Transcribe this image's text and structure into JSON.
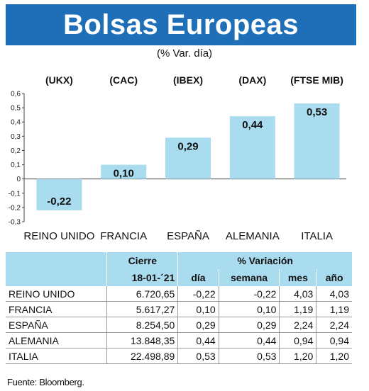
{
  "title": "Bolsas Europeas",
  "subtitle": "(% Var. día)",
  "chart_data": {
    "type": "bar",
    "categories": [
      "REINO UNIDO",
      "FRANCIA",
      "ESPAÑA",
      "ALEMANIA",
      "ITALIA"
    ],
    "indices": [
      "(UKX)",
      "(CAC)",
      "(IBEX)",
      "(DAX)",
      "(FTSE MIB)"
    ],
    "values": [
      -0.22,
      0.1,
      0.29,
      0.44,
      0.53
    ],
    "value_labels": [
      "-0,22",
      "0,10",
      "0,29",
      "0,44",
      "0,53"
    ],
    "ylim": [
      -0.3,
      0.6
    ],
    "yticks": [
      "0,6",
      "0,5",
      "0,4",
      "0,3",
      "0,2",
      "0,1",
      "0",
      "-0,1",
      "-0,2",
      "-0,3"
    ],
    "bar_color": "#a9dcef",
    "grid": false
  },
  "table": {
    "header_cierre": "Cierre",
    "header_variacion": "% Variación",
    "header_date": "18-01-´21",
    "subheaders": [
      "día",
      "semana",
      "mes",
      "año"
    ],
    "rows": [
      [
        "REINO UNIDO",
        "6.720,65",
        "-0,22",
        "-0,22",
        "4,03",
        "4,03"
      ],
      [
        "FRANCIA",
        "5.617,27",
        "0,10",
        "0,10",
        "1,19",
        "1,19"
      ],
      [
        "ESPAÑA",
        "8.254,50",
        "0,29",
        "0,29",
        "2,24",
        "2,24"
      ],
      [
        "ALEMANIA",
        "13.848,35",
        "0,44",
        "0,44",
        "0,94",
        "0,94"
      ],
      [
        "ITALIA",
        "22.498,89",
        "0,53",
        "0,53",
        "1,20",
        "1,20"
      ]
    ]
  },
  "source": "Fuente: Bloomberg.",
  "colors": {
    "title_bg": "#1f6fb8",
    "bar": "#a9dcef",
    "header_bg": "#a9dcef"
  }
}
